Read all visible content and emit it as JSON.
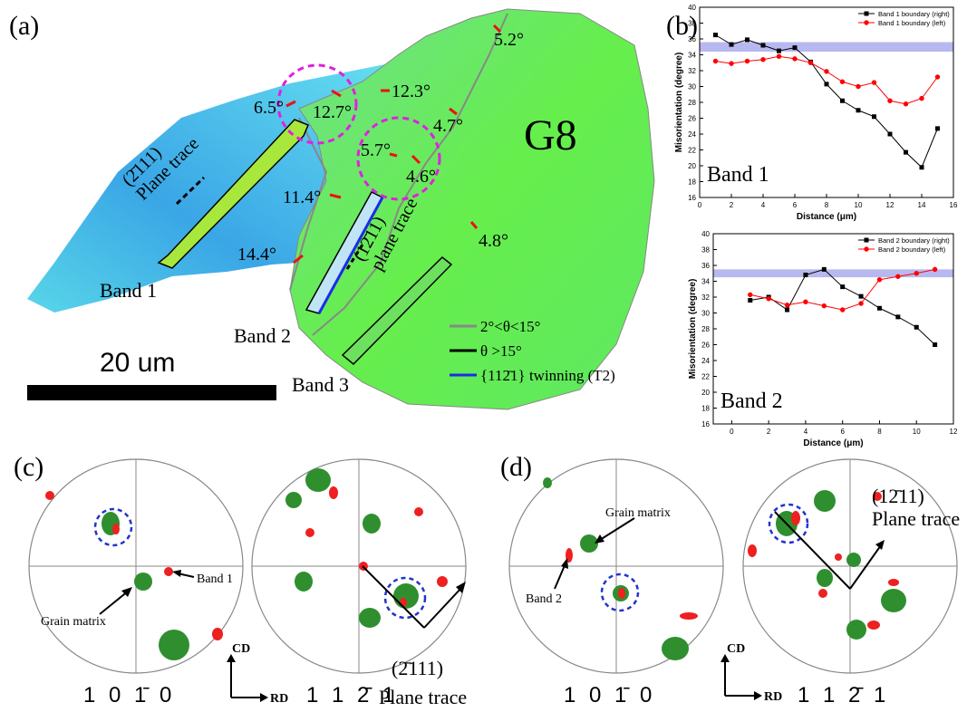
{
  "figure": {
    "a": {
      "label": "(a)",
      "grain": "G8",
      "angles": [
        "5.2°",
        "12.3°",
        "6.5°",
        "12.7°",
        "4.7°",
        "5.7°",
        "4.6°",
        "11.4°",
        "4.8°",
        "14.4°"
      ],
      "bands": [
        "Band 1",
        "Band 2",
        "Band 3"
      ],
      "trace_1": [
        "(2̄111)",
        "Plane trace"
      ],
      "trace_2": [
        "(12̄11)",
        "plane trace"
      ],
      "legend": [
        "2°<θ<15°",
        "θ >15°",
        "{112̄1} twinning (T2)"
      ],
      "scale_bar": "20 um"
    },
    "b": {
      "label": "(b)"
    },
    "c": {
      "label": "(c)",
      "matrix": "Grain matrix",
      "band": "Band 1",
      "trace": [
        "(2̄111)",
        "Plane trace"
      ],
      "pole_figures": [
        "1 0 1̄ 0",
        "1 1 2̄ 1"
      ],
      "axes": [
        "CD",
        "RD"
      ]
    },
    "d": {
      "label": "(d)",
      "matrix": "Grain matrix",
      "band": "Band 2",
      "trace": [
        "(12̄11)",
        "Plane trace"
      ],
      "pole_figures": [
        "1 0 1̄ 0",
        "1 1 2̄ 1"
      ],
      "axes": [
        "CD",
        "RD"
      ]
    }
  },
  "chart_data": [
    {
      "type": "line",
      "annotation": "Band 1",
      "xlabel": "Distance (μm)",
      "ylabel": "Misorientation (degree)",
      "xlim": [
        0,
        16
      ],
      "ylim": [
        16,
        40
      ],
      "xticks": [
        0,
        2,
        4,
        6,
        8,
        10,
        12,
        14,
        16
      ],
      "yticks": [
        16,
        18,
        20,
        22,
        24,
        26,
        28,
        30,
        32,
        34,
        36,
        38,
        40
      ],
      "highlight_band": [
        34.4,
        35.6
      ],
      "highlight_color": "#b8b8f0",
      "series": [
        {
          "name": "Band 1 boundary  (right)",
          "color": "#000000",
          "marker": "square",
          "x": [
            1,
            2,
            3,
            4,
            5,
            6,
            7,
            8,
            9,
            10,
            11,
            12,
            13,
            14,
            15
          ],
          "values": [
            36.5,
            35.3,
            35.9,
            35.2,
            34.5,
            34.9,
            33.1,
            30.3,
            28.2,
            27.0,
            26.2,
            24.0,
            21.7,
            19.8,
            24.7
          ]
        },
        {
          "name": "Band 1 boundary (left)",
          "color": "#ff0000",
          "marker": "circle",
          "x": [
            1,
            2,
            3,
            4,
            5,
            6,
            7,
            8,
            9,
            10,
            11,
            12,
            13,
            14,
            15
          ],
          "values": [
            33.2,
            32.9,
            33.2,
            33.4,
            33.8,
            33.5,
            33.0,
            31.9,
            30.6,
            30.0,
            30.5,
            28.2,
            27.8,
            28.5,
            31.2
          ]
        }
      ]
    },
    {
      "type": "line",
      "annotation": "Band 2",
      "xlabel": "Distance (μm)",
      "ylabel": "Misorientation (degree)",
      "xlim": [
        -1,
        12
      ],
      "ylim": [
        16,
        40
      ],
      "xticks": [
        0,
        2,
        4,
        6,
        8,
        10,
        12
      ],
      "yticks": [
        16,
        18,
        20,
        22,
        24,
        26,
        28,
        30,
        32,
        34,
        36,
        38,
        40
      ],
      "highlight_band": [
        34.5,
        35.5
      ],
      "highlight_color": "#b8b8f0",
      "series": [
        {
          "name": "Band 2 boundary  (right)",
          "color": "#000000",
          "marker": "square",
          "x": [
            1,
            2,
            3,
            4,
            5,
            6,
            7,
            8,
            9,
            10,
            11
          ],
          "values": [
            31.6,
            32.0,
            30.4,
            34.8,
            35.5,
            33.3,
            32.1,
            30.6,
            29.5,
            28.2,
            26.0
          ]
        },
        {
          "name": "Band 2 boundary (left)",
          "color": "#ff0000",
          "marker": "circle",
          "x": [
            1,
            2,
            3,
            4,
            5,
            6,
            7,
            8,
            9,
            10,
            11
          ],
          "values": [
            32.3,
            31.8,
            31.0,
            31.4,
            30.9,
            30.4,
            31.2,
            34.2,
            34.6,
            35.0,
            35.5
          ]
        }
      ]
    }
  ]
}
